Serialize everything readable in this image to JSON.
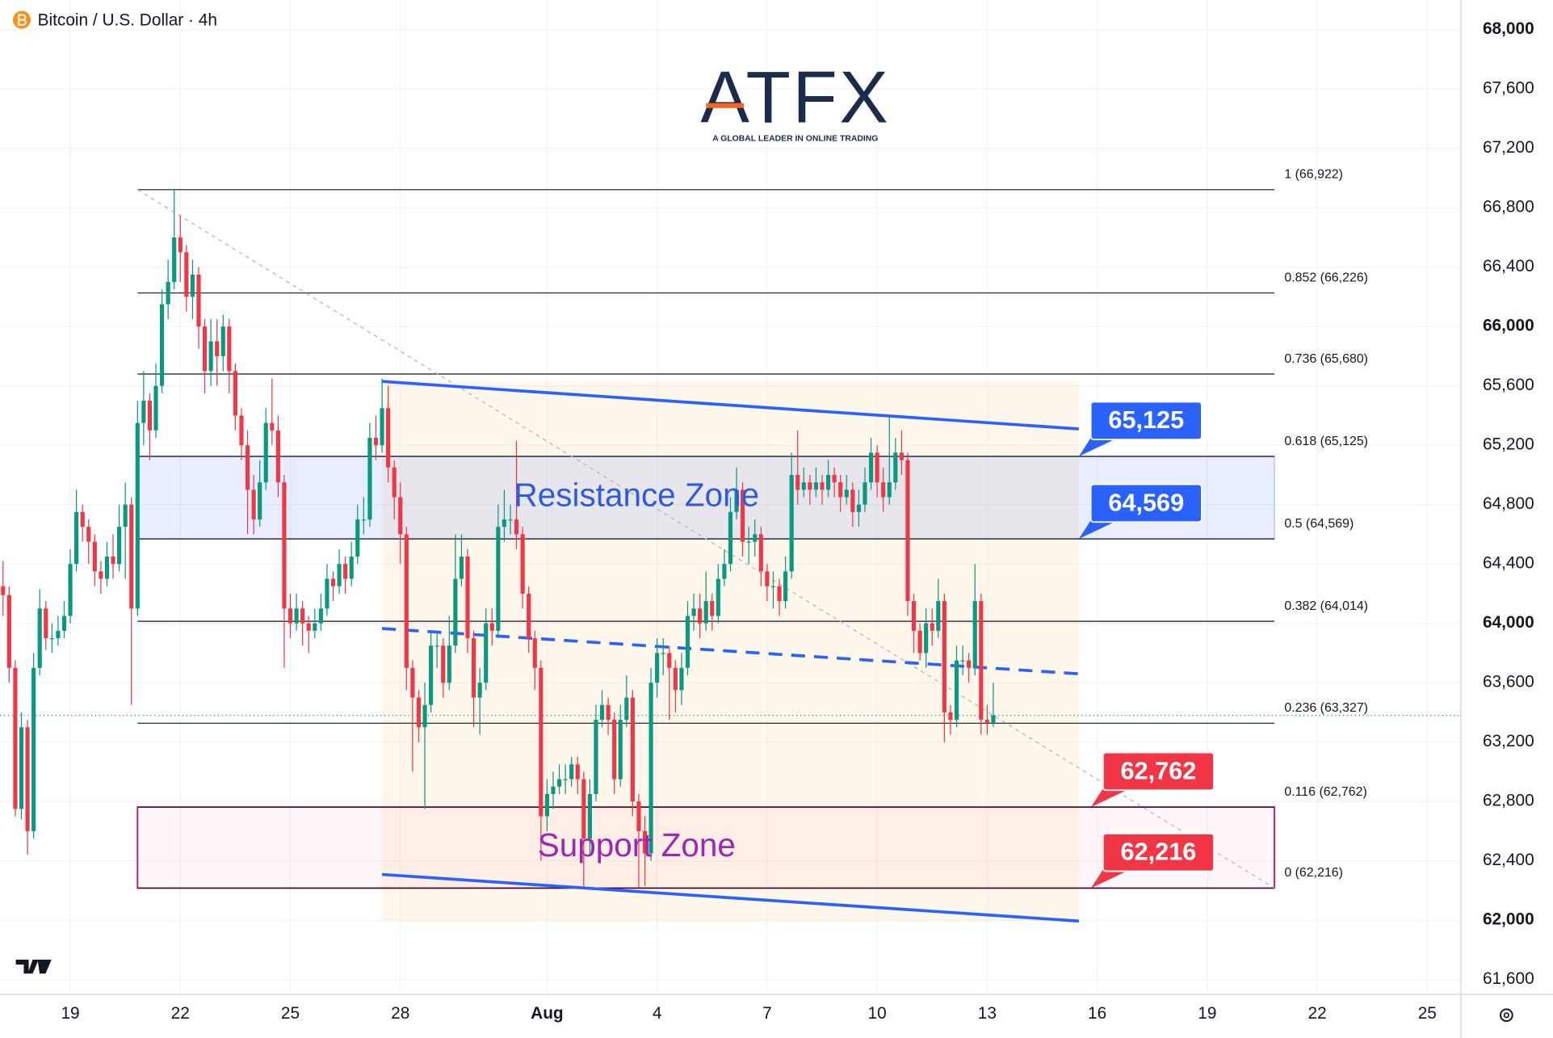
{
  "chart_data": {
    "type": "candlestick",
    "title": "Bitcoin / U.S. Dollar · 4h",
    "watermark": {
      "name": "ATFX",
      "tagline": "A GLOBAL LEADER IN ONLINE TRADING"
    },
    "up_color": "#089981",
    "down_color": "#f23645",
    "xlim": [
      -0.5,
      238.5
    ],
    "xticks": [
      {
        "value": 11,
        "label": "19"
      },
      {
        "value": 29,
        "label": "22"
      },
      {
        "value": 47,
        "label": "25"
      },
      {
        "value": 65,
        "label": "28"
      },
      {
        "value": 89,
        "label": "Aug"
      },
      {
        "value": 107,
        "label": "4"
      },
      {
        "value": 125,
        "label": "7"
      },
      {
        "value": 143,
        "label": "10"
      },
      {
        "value": 161,
        "label": "13"
      },
      {
        "value": 179,
        "label": "16"
      },
      {
        "value": 197,
        "label": "19"
      },
      {
        "value": 215,
        "label": "22"
      },
      {
        "value": 233,
        "label": "25"
      }
    ],
    "ylim": [
      61500,
      68200
    ],
    "yticks": [
      {
        "value": 61600,
        "label": "61,600"
      },
      {
        "value": 62000,
        "label": "62,000"
      },
      {
        "value": 62400,
        "label": "62,400"
      },
      {
        "value": 62800,
        "label": "62,800"
      },
      {
        "value": 63200,
        "label": "63,200"
      },
      {
        "value": 63600,
        "label": "63,600"
      },
      {
        "value": 64000,
        "label": "64,000"
      },
      {
        "value": 64400,
        "label": "64,400"
      },
      {
        "value": 64800,
        "label": "64,800"
      },
      {
        "value": 65200,
        "label": "65,200"
      },
      {
        "value": 65600,
        "label": "65,600"
      },
      {
        "value": 66000,
        "label": "66,000"
      },
      {
        "value": 66400,
        "label": "66,400"
      },
      {
        "value": 66800,
        "label": "66,800"
      },
      {
        "value": 67200,
        "label": "67,200"
      },
      {
        "value": 67600,
        "label": "67,600"
      },
      {
        "value": 68000,
        "label": "68,000"
      }
    ],
    "grid": true,
    "open": [
      64250,
      64190,
      63700,
      62750,
      63300,
      62600,
      63700,
      64100,
      63900,
      63900,
      63950,
      64050,
      64400,
      64750,
      64650,
      64550,
      64350,
      64300,
      64450,
      64400,
      64650,
      64800,
      64100,
      65350,
      65500,
      65300,
      65600,
      66150,
      66300,
      66600,
      66500,
      66200,
      66350,
      66000,
      65700,
      65900,
      65800,
      66000,
      65700,
      65400,
      65200,
      64900,
      64700,
      64950,
      65350,
      65300,
      64950,
      64100,
      64000,
      64100,
      64000,
      63950,
      64000,
      64100,
      64300,
      64250,
      64400,
      64300,
      64450,
      64700,
      64700,
      65250,
      65200,
      65450,
      65050,
      64850,
      64600,
      63700,
      63500,
      63300,
      63450,
      63850,
      63850,
      63600,
      63850,
      64300,
      64450,
      63900,
      63500,
      63600,
      64000,
      63950,
      64650,
      64700,
      64700,
      64600,
      64200,
      63900,
      63700,
      62700,
      62850,
      62900,
      62950,
      62950,
      63050,
      62950,
      62550,
      62850,
      63350,
      63450,
      63350,
      62950,
      63350,
      63500,
      62800,
      62600,
      62450,
      63600,
      63800,
      63800,
      63700,
      63550,
      63700,
      64050,
      64100,
      64000,
      64150,
      64050,
      64300,
      64400,
      64750,
      64900,
      64550,
      64550,
      64600,
      64350,
      64250,
      64250,
      64150,
      64350,
      65000,
      64900,
      64950,
      64900,
      64950,
      64900,
      65000,
      64950,
      64850,
      64900,
      64750,
      64800,
      64950,
      65150,
      64950,
      64850,
      64950,
      65150,
      65100,
      64150,
      63950,
      63800,
      64000,
      63950,
      64150,
      63400,
      63350,
      63750,
      63750,
      63700,
      64150,
      63350,
      63330
    ],
    "high": [
      64420,
      64250,
      63750,
      63400,
      63350,
      63800,
      64230,
      64150,
      64000,
      64050,
      64150,
      64500,
      64900,
      64800,
      64700,
      64600,
      64420,
      64550,
      64600,
      64800,
      64950,
      64850,
      65500,
      65700,
      65550,
      65750,
      66250,
      66450,
      66920,
      66750,
      66550,
      66450,
      66400,
      66050,
      66050,
      66050,
      66080,
      66050,
      65750,
      65450,
      65300,
      65000,
      65100,
      65450,
      65650,
      65400,
      65000,
      64200,
      64200,
      64150,
      64050,
      64100,
      64200,
      64400,
      64350,
      64500,
      64450,
      64550,
      64800,
      64850,
      65350,
      65400,
      65650,
      65600,
      65100,
      64950,
      64650,
      63750,
      63550,
      63600,
      63950,
      63950,
      63900,
      64050,
      64600,
      64600,
      64500,
      63950,
      63700,
      64100,
      64100,
      64800,
      64900,
      64800,
      65230,
      64650,
      64250,
      63950,
      63750,
      62950,
      63000,
      63050,
      63050,
      63100,
      63100,
      63000,
      62950,
      63450,
      63550,
      63500,
      63400,
      63450,
      63650,
      63550,
      62850,
      62700,
      63700,
      63900,
      63900,
      63850,
      63750,
      63800,
      64150,
      64200,
      64200,
      64350,
      64200,
      64400,
      64500,
      64850,
      65050,
      64950,
      64650,
      64700,
      64650,
      64400,
      64350,
      64300,
      64450,
      65150,
      65300,
      65050,
      65000,
      65050,
      65000,
      65100,
      65050,
      65000,
      65000,
      64950,
      64900,
      65050,
      65250,
      65200,
      65050,
      65400,
      65250,
      65300,
      65150,
      64200,
      64000,
      64100,
      64100,
      64300,
      64200,
      63450,
      63850,
      63850,
      63800,
      64400,
      64200,
      63450,
      63600
    ],
    "low": [
      64050,
      63600,
      62700,
      62680,
      62440,
      62550,
      63650,
      63820,
      63800,
      63850,
      63900,
      64000,
      64350,
      64550,
      64400,
      64250,
      64200,
      64250,
      64300,
      64350,
      64300,
      63450,
      64050,
      65200,
      65100,
      65250,
      65550,
      66050,
      66250,
      66300,
      66100,
      66050,
      65850,
      65550,
      65600,
      65600,
      65700,
      65550,
      65300,
      65100,
      64600,
      64600,
      64650,
      64900,
      65200,
      64850,
      63700,
      63900,
      63950,
      63850,
      63800,
      63900,
      63950,
      64050,
      64150,
      64200,
      64200,
      64250,
      64400,
      64600,
      64650,
      65100,
      65150,
      64950,
      64700,
      64400,
      63550,
      63000,
      63200,
      62750,
      63400,
      63700,
      63500,
      63550,
      63800,
      64250,
      63800,
      63300,
      63250,
      63550,
      63850,
      63900,
      64550,
      64600,
      64500,
      64100,
      63800,
      63550,
      62400,
      62600,
      62750,
      62850,
      62850,
      62900,
      62850,
      62220,
      62450,
      62800,
      63300,
      63250,
      62850,
      62900,
      63300,
      62700,
      62220,
      62230,
      62400,
      63500,
      63650,
      63350,
      63400,
      63450,
      63650,
      63950,
      63900,
      63950,
      63950,
      64000,
      64250,
      64350,
      64700,
      64450,
      64400,
      64450,
      64250,
      64150,
      64100,
      64050,
      64100,
      64300,
      64800,
      64850,
      64800,
      64850,
      64800,
      64850,
      64850,
      64750,
      64800,
      64650,
      64650,
      64750,
      64900,
      64850,
      64750,
      64800,
      64900,
      65000,
      64050,
      63800,
      63750,
      63700,
      63850,
      63900,
      63200,
      63250,
      63300,
      63650,
      63600,
      63650,
      63250,
      63250,
      63300
    ],
    "close": [
      64190,
      63700,
      62750,
      63300,
      62600,
      63700,
      64100,
      63900,
      63900,
      63950,
      64050,
      64400,
      64750,
      64650,
      64550,
      64350,
      64300,
      64450,
      64400,
      64650,
      64800,
      64100,
      65350,
      65500,
      65300,
      65600,
      66150,
      66300,
      66600,
      66500,
      66200,
      66350,
      66000,
      65700,
      65900,
      65800,
      66000,
      65700,
      65400,
      65200,
      64900,
      64700,
      64950,
      65350,
      65300,
      64950,
      64100,
      64000,
      64100,
      64000,
      63950,
      64000,
      64100,
      64300,
      64250,
      64400,
      64300,
      64450,
      64700,
      64700,
      65250,
      65200,
      65450,
      65050,
      64850,
      64600,
      63700,
      63500,
      63300,
      63450,
      63850,
      63850,
      63600,
      63850,
      64300,
      64450,
      63900,
      63500,
      63600,
      64000,
      63950,
      64650,
      64700,
      64700,
      64600,
      64200,
      63900,
      63700,
      62700,
      62850,
      62900,
      62950,
      62950,
      63050,
      62950,
      62550,
      62850,
      63350,
      63450,
      63350,
      62950,
      63350,
      63500,
      62800,
      62600,
      62450,
      63600,
      63800,
      63800,
      63700,
      63550,
      63700,
      64050,
      64100,
      64000,
      64150,
      64050,
      64300,
      64400,
      64750,
      64900,
      64550,
      64550,
      64600,
      64350,
      64250,
      64250,
      64150,
      64350,
      65000,
      64900,
      64950,
      64900,
      64950,
      64900,
      65000,
      64950,
      64850,
      64900,
      64750,
      64800,
      64950,
      65150,
      64950,
      64850,
      64950,
      65150,
      65100,
      64150,
      63950,
      63800,
      64000,
      63950,
      64150,
      63400,
      63350,
      63750,
      63750,
      63700,
      64150,
      63350,
      63330,
      63380
    ],
    "fib": {
      "x": [
        22,
        208
      ],
      "color": "#131722",
      "levels": [
        {
          "label": "1 (66,922)",
          "value": 66922
        },
        {
          "label": "0.852 (66,226)",
          "value": 66226
        },
        {
          "label": "0.736 (65,680)",
          "value": 65680
        },
        {
          "label": "0.618 (65,125)",
          "value": 65125
        },
        {
          "label": "0.5 (64,569)",
          "value": 64569
        },
        {
          "label": "0.382 (64,014)",
          "value": 64014
        },
        {
          "label": "0.236 (63,327)",
          "value": 63327
        },
        {
          "label": "0.116 (62,762)",
          "value": 62762
        },
        {
          "label": "0 (62,216)",
          "value": 62216
        }
      ]
    },
    "zones": [
      {
        "label": "Resistance Zone",
        "low": 64569,
        "high": 65125,
        "x": [
          22,
          208
        ],
        "fill": "rgba(41,98,255,0.11)",
        "stroke": "rgba(41,98,255,0.25)",
        "text_color": "#2e5bdc"
      },
      {
        "label": "Support Zone",
        "low": 62216,
        "high": 62762,
        "x": [
          22,
          208
        ],
        "fill": "rgba(233,30,99,0.04)",
        "stroke": "#c2185b",
        "text_color": "#9c27b0"
      }
    ],
    "trendlines": [
      {
        "x": [
          62,
          176
        ],
        "y": [
          65630,
          65310
        ],
        "color": "#2962ff",
        "dashed": false
      },
      {
        "x": [
          62,
          176
        ],
        "y": [
          63965,
          63660
        ],
        "color": "#2962ff",
        "dashed": true
      },
      {
        "x": [
          62,
          176
        ],
        "y": [
          62308,
          61994
        ],
        "color": "#2962ff",
        "dashed": false
      }
    ],
    "diagonal": {
      "x": [
        22,
        208
      ],
      "y": [
        66922,
        62216
      ],
      "color": "#b2b5be"
    },
    "channel_fill": "rgba(255,152,0,0.08)",
    "badges": [
      {
        "label": "65,125",
        "value": 65125,
        "x": 176,
        "color": "#2962ff"
      },
      {
        "label": "64,569",
        "value": 64569,
        "x": 176,
        "color": "#2962ff"
      },
      {
        "label": "62,762",
        "value": 62762,
        "x": 178,
        "color": "#f23645"
      },
      {
        "label": "62,216",
        "value": 62216,
        "x": 178,
        "color": "#f23645"
      }
    ]
  }
}
